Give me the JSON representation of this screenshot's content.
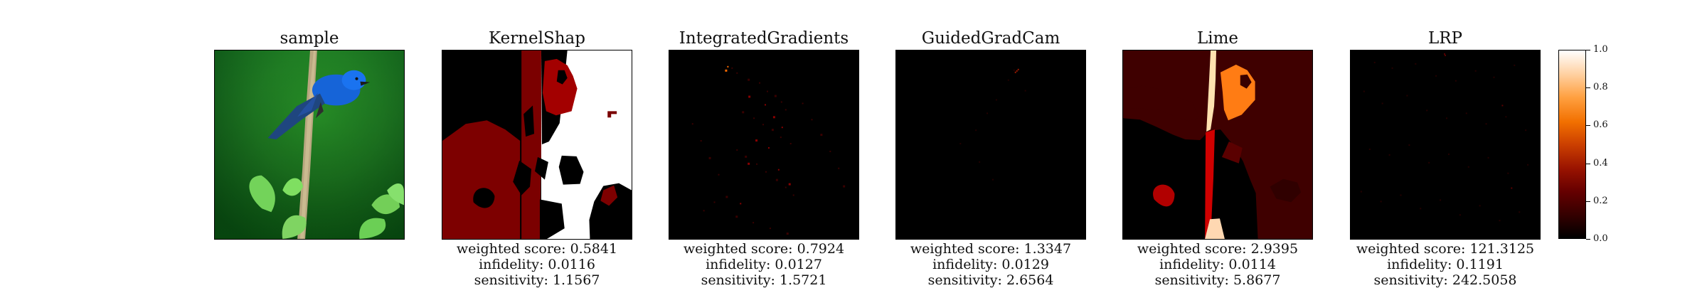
{
  "panels": [
    {
      "title": "sample",
      "metrics": []
    },
    {
      "title": "KernelShap",
      "metrics": [
        "weighted score: 0.5841",
        "infidelity: 0.0116",
        "sensitivity: 1.1567"
      ]
    },
    {
      "title": "IntegratedGradients",
      "metrics": [
        "weighted score: 0.7924",
        "infidelity: 0.0127",
        "sensitivity: 1.5721"
      ]
    },
    {
      "title": "GuidedGradCam",
      "metrics": [
        "weighted score: 1.3347",
        "infidelity: 0.0129",
        "sensitivity: 2.6564"
      ]
    },
    {
      "title": "Lime",
      "metrics": [
        "weighted score: 2.9395",
        "infidelity: 0.0114",
        "sensitivity: 5.8677"
      ]
    },
    {
      "title": "LRP",
      "metrics": [
        "weighted score: 121.3125",
        "infidelity: 0.1191",
        "sensitivity: 242.5058"
      ]
    }
  ],
  "colorbar": {
    "ticks": [
      "0.0",
      "0.2",
      "0.4",
      "0.6",
      "0.8",
      "1.0"
    ],
    "colors": [
      "#000000",
      "#330000",
      "#660000",
      "#991300",
      "#cc4000",
      "#f27000",
      "#ffa040",
      "#ffd3a6",
      "#ffffff"
    ]
  }
}
